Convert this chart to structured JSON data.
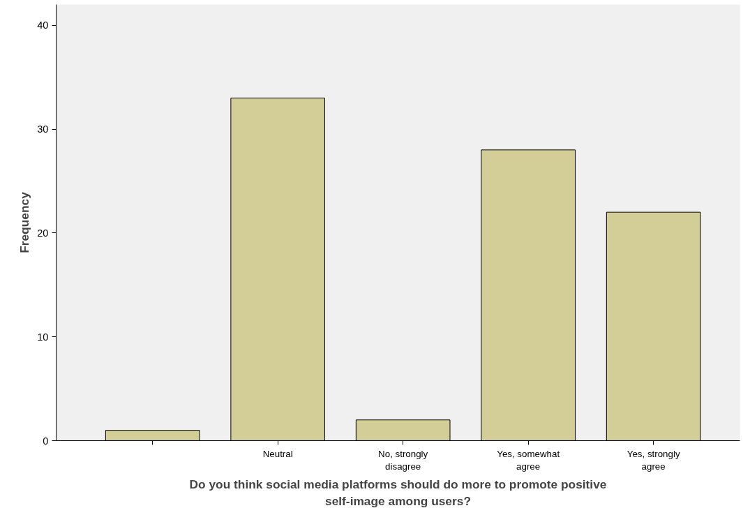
{
  "chart_data": {
    "type": "bar",
    "xlabel": "Do you think social media platforms should do more to promote positive self-image among users?",
    "ylabel": "Frequency",
    "categories": [
      null,
      "Neutral",
      "No, strongly disagree",
      "Yes, somewhat agree",
      "Yes, strongly agree"
    ],
    "values": [
      1,
      33,
      2,
      28,
      22
    ],
    "color": "#d3ce97",
    "ylim": [
      0,
      42
    ],
    "yticks": [
      0,
      10,
      20,
      30,
      40
    ],
    "grid": false
  }
}
